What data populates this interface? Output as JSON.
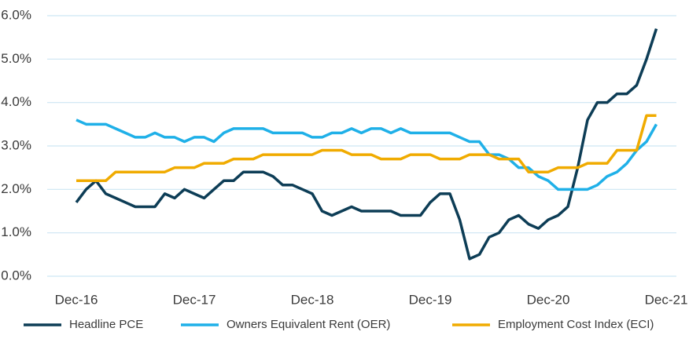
{
  "chart_data": {
    "type": "line",
    "categories": [
      "Dec-16",
      null,
      null,
      null,
      null,
      null,
      null,
      null,
      null,
      null,
      null,
      null,
      "Dec-17",
      null,
      null,
      null,
      null,
      null,
      null,
      null,
      null,
      null,
      null,
      null,
      "Dec-18",
      null,
      null,
      null,
      null,
      null,
      null,
      null,
      null,
      null,
      null,
      null,
      "Dec-19",
      null,
      null,
      null,
      null,
      null,
      null,
      null,
      null,
      null,
      null,
      null,
      "Dec-20",
      null,
      null,
      null,
      null,
      null,
      null,
      null,
      null,
      null,
      null,
      null,
      "Dec-21"
    ],
    "series": [
      {
        "name": "Headline PCE",
        "color": "#0d3d56",
        "values": [
          1.7,
          2.0,
          2.2,
          1.9,
          1.8,
          1.7,
          1.6,
          1.6,
          1.6,
          1.9,
          1.8,
          2.0,
          1.9,
          1.8,
          2.0,
          2.2,
          2.2,
          2.4,
          2.4,
          2.4,
          2.3,
          2.1,
          2.1,
          2.0,
          1.9,
          1.5,
          1.4,
          1.5,
          1.6,
          1.5,
          1.5,
          1.5,
          1.5,
          1.4,
          1.4,
          1.4,
          1.7,
          1.9,
          1.9,
          1.3,
          0.4,
          0.5,
          0.9,
          1.0,
          1.3,
          1.4,
          1.2,
          1.1,
          1.3,
          1.4,
          1.6,
          2.5,
          3.6,
          4.0,
          4.0,
          4.2,
          4.2,
          4.4,
          5.0,
          5.7,
          null
        ]
      },
      {
        "name": "Owners Equivalent Rent (OER)",
        "color": "#1fb0e8",
        "values": [
          3.6,
          3.5,
          3.5,
          3.5,
          3.4,
          3.3,
          3.2,
          3.2,
          3.3,
          3.2,
          3.2,
          3.1,
          3.2,
          3.2,
          3.1,
          3.3,
          3.4,
          3.4,
          3.4,
          3.4,
          3.3,
          3.3,
          3.3,
          3.3,
          3.2,
          3.2,
          3.3,
          3.3,
          3.4,
          3.3,
          3.4,
          3.4,
          3.3,
          3.4,
          3.3,
          3.3,
          3.3,
          3.3,
          3.3,
          3.2,
          3.1,
          3.1,
          2.8,
          2.8,
          2.7,
          2.5,
          2.5,
          2.3,
          2.2,
          2.0,
          2.0,
          2.0,
          2.0,
          2.1,
          2.3,
          2.4,
          2.6,
          2.9,
          3.1,
          3.5,
          null
        ]
      },
      {
        "name": "Employment Cost Index (ECI)",
        "color": "#f0ab00",
        "values": [
          2.2,
          2.2,
          2.2,
          2.2,
          2.4,
          2.4,
          2.4,
          2.4,
          2.4,
          2.4,
          2.5,
          2.5,
          2.5,
          2.6,
          2.6,
          2.6,
          2.7,
          2.7,
          2.7,
          2.8,
          2.8,
          2.8,
          2.8,
          2.8,
          2.8,
          2.9,
          2.9,
          2.9,
          2.8,
          2.8,
          2.8,
          2.7,
          2.7,
          2.7,
          2.8,
          2.8,
          2.8,
          2.7,
          2.7,
          2.7,
          2.8,
          2.8,
          2.8,
          2.7,
          2.7,
          2.7,
          2.4,
          2.4,
          2.4,
          2.5,
          2.5,
          2.5,
          2.6,
          2.6,
          2.6,
          2.9,
          2.9,
          2.9,
          3.7,
          3.7,
          null
        ]
      }
    ],
    "ylim": [
      0,
      6
    ],
    "yticks": [
      {
        "value": 0,
        "label": "0.0%"
      },
      {
        "value": 1,
        "label": "1.0%"
      },
      {
        "value": 2,
        "label": "2.0%"
      },
      {
        "value": 3,
        "label": "3.0%"
      },
      {
        "value": 4,
        "label": "4.0%"
      },
      {
        "value": 5,
        "label": "5.0%"
      },
      {
        "value": 6,
        "label": "6.0%"
      }
    ],
    "grid": true,
    "legend": "bottom"
  }
}
